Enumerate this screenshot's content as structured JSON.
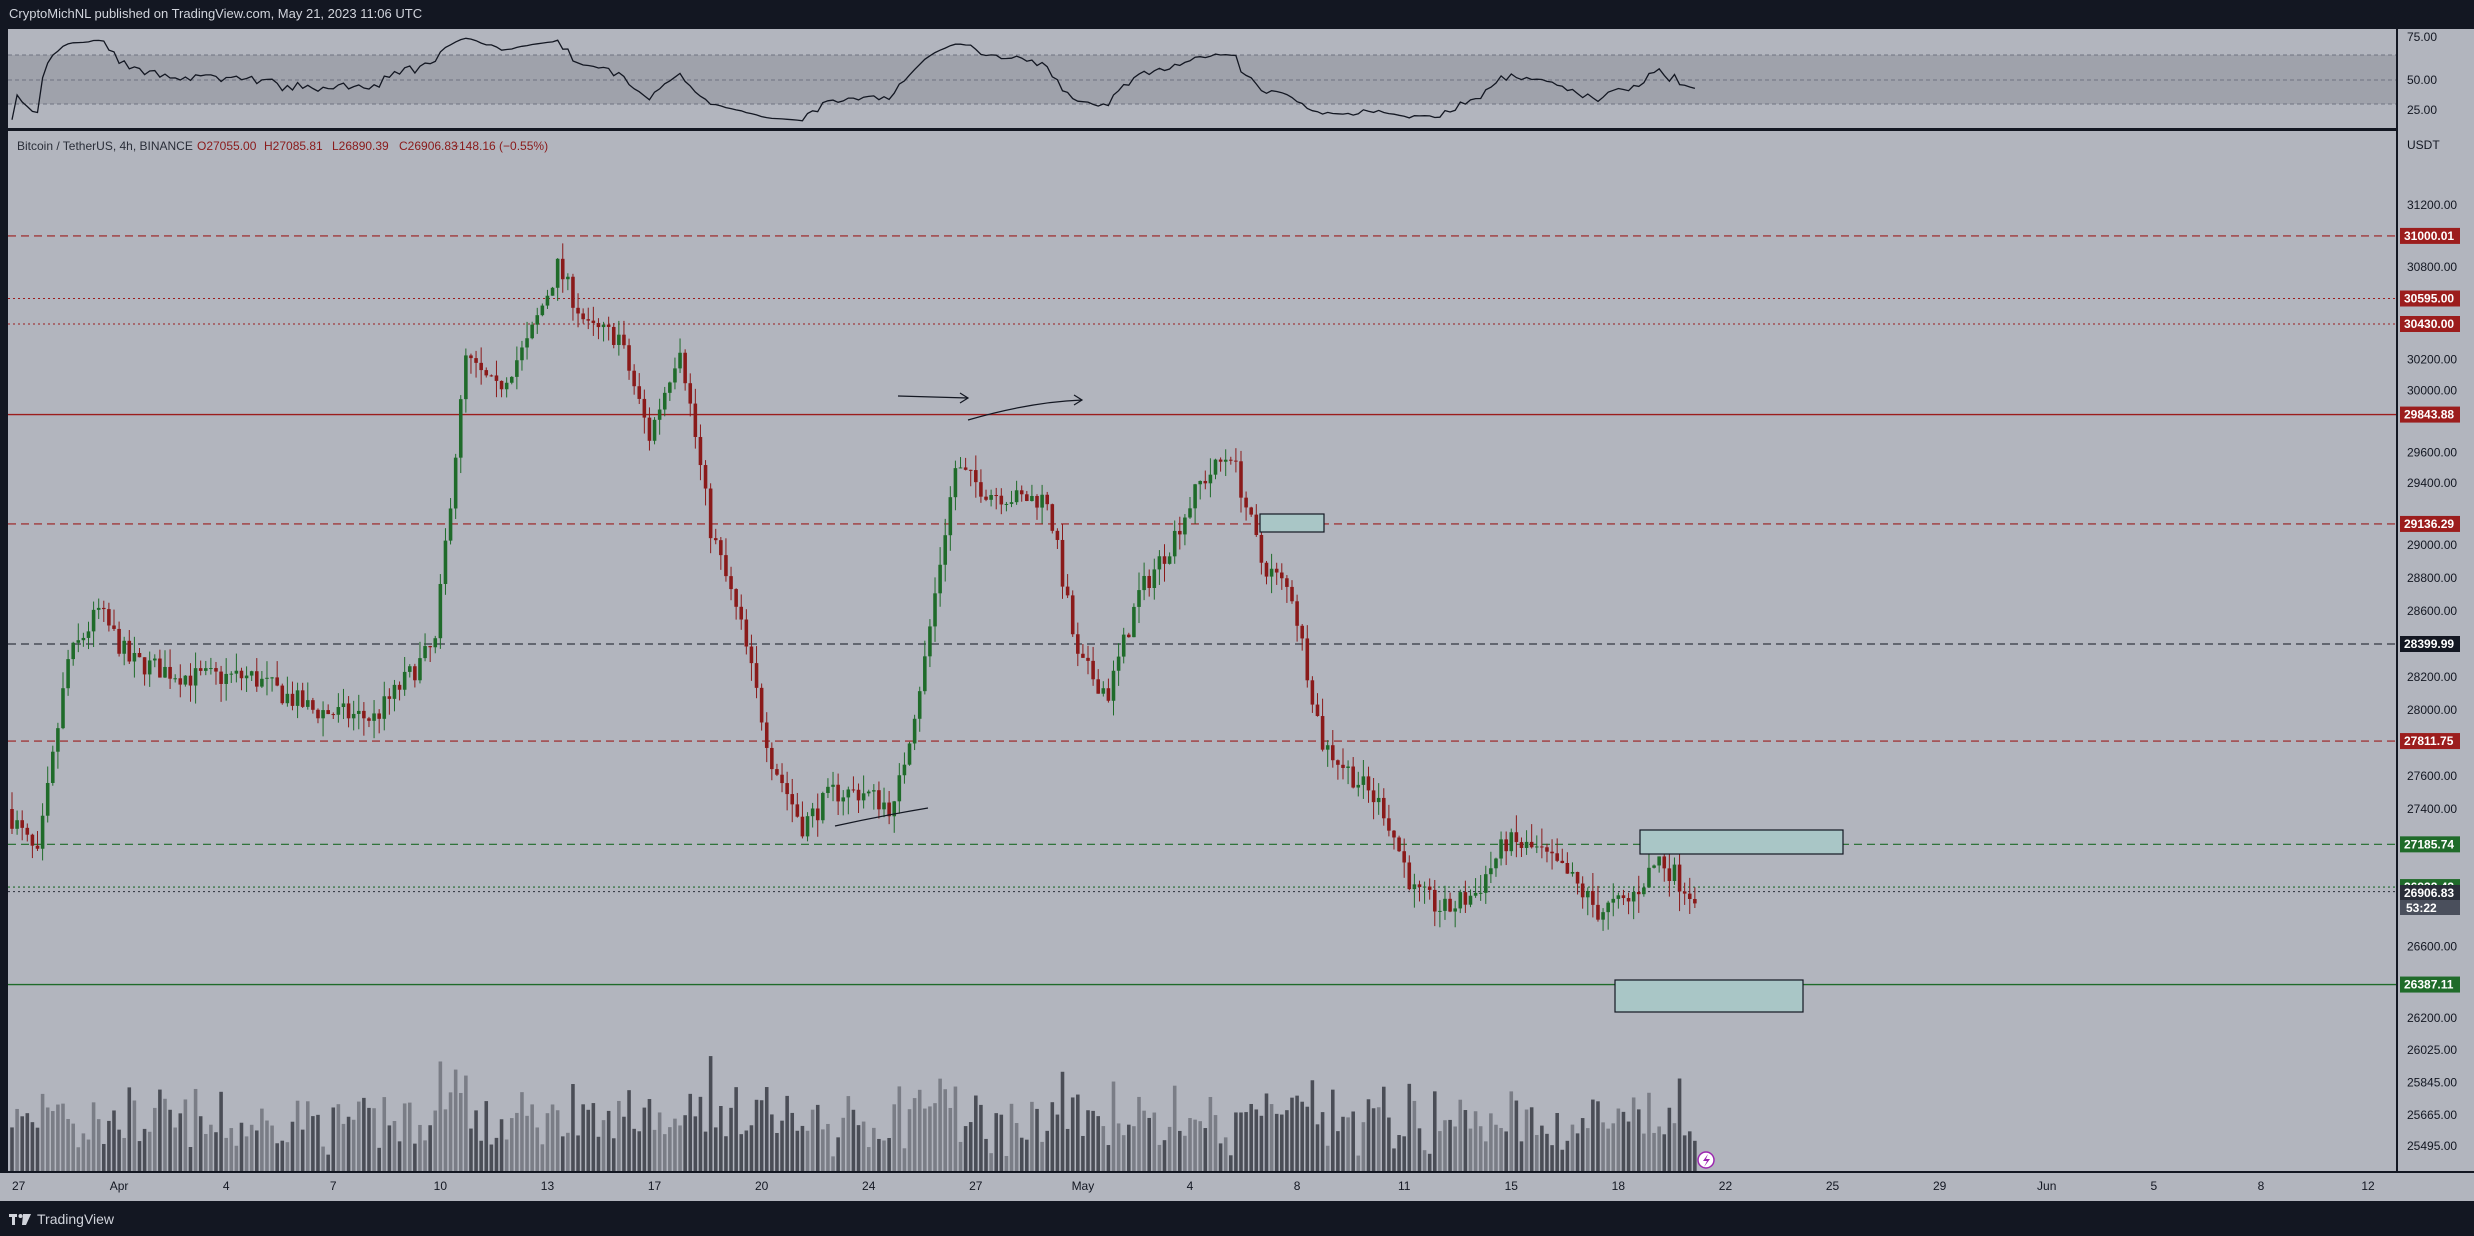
{
  "header": {
    "published": "CryptoMichNL published on TradingView.com, May 21, 2023 11:06 UTC"
  },
  "footer": {
    "brand": "TradingView"
  },
  "legend": {
    "symbol": "Bitcoin / TetherUS, 4h, BINANCE",
    "open": "O27055.00",
    "high": "H27085.81",
    "low": "L26890.39",
    "close": "C26906.83",
    "change": "−148.16 (−0.55%)"
  },
  "colors": {
    "background": "#b2b5be",
    "up": "#1f6b2a",
    "down": "#8a1a1a",
    "resistance": "#9c1d1d",
    "support": "#1f6b2a",
    "box_fill": "#a9c6c6"
  },
  "chart_data": {
    "type": "candlestick",
    "quote_currency": "USDT",
    "x_tick_labels": [
      "27",
      "Apr",
      "4",
      "7",
      "10",
      "13",
      "17",
      "20",
      "24",
      "27",
      "May",
      "4",
      "8",
      "11",
      "15",
      "18",
      "22",
      "25",
      "29",
      "Jun",
      "5",
      "8",
      "12"
    ],
    "x_date_range": [
      "2023-03-27",
      "2023-06-12"
    ],
    "y_tick_labels": [
      "31200.00",
      "30800.00",
      "30600.00",
      "30200.00",
      "30000.00",
      "29600.00",
      "29400.00",
      "29000.00",
      "28800.00",
      "28600.00",
      "28200.00",
      "28000.00",
      "27600.00",
      "27400.00",
      "26600.00",
      "26200.00",
      "26025.00",
      "25845.00",
      "25665.00",
      "25495.00"
    ],
    "price_levels": [
      {
        "label": "31000.01",
        "style": "dashed",
        "color": "resistance"
      },
      {
        "label": "30595.00",
        "style": "dotted",
        "color": "resistance"
      },
      {
        "label": "30430.00",
        "style": "dotted",
        "color": "resistance"
      },
      {
        "label": "29843.88",
        "style": "solid",
        "color": "resistance"
      },
      {
        "label": "29136.29",
        "style": "dashed",
        "color": "resistance"
      },
      {
        "label": "28399.99",
        "style": "dashed",
        "color": "black"
      },
      {
        "label": "27811.75",
        "style": "dashed",
        "color": "resistance"
      },
      {
        "label": "27185.74",
        "style": "dashed",
        "color": "support"
      },
      {
        "label": "26932.43",
        "style": "dotted",
        "color": "support"
      },
      {
        "label": "26387.11",
        "style": "solid",
        "color": "support"
      }
    ],
    "last_price": "26906.83",
    "countdown": "53:22",
    "price_path": [
      [
        "2023-03-27",
        27400
      ],
      [
        "2023-03-28",
        27100
      ],
      [
        "2023-03-29",
        28300
      ],
      [
        "2023-03-30",
        28600
      ],
      [
        "2023-03-31",
        28300
      ],
      [
        "2023-04-02",
        28200
      ],
      [
        "2023-04-04",
        28200
      ],
      [
        "2023-04-06",
        28000
      ],
      [
        "2023-04-08",
        27950
      ],
      [
        "2023-04-10",
        28400
      ],
      [
        "2023-04-11",
        30200
      ],
      [
        "2023-04-12",
        30000
      ],
      [
        "2023-04-13",
        30300
      ],
      [
        "2023-04-14",
        30800
      ],
      [
        "2023-04-15",
        30400
      ],
      [
        "2023-04-16",
        30350
      ],
      [
        "2023-04-17",
        29700
      ],
      [
        "2023-04-18",
        30300
      ],
      [
        "2023-04-19",
        29100
      ],
      [
        "2023-04-20",
        28500
      ],
      [
        "2023-04-21",
        27700
      ],
      [
        "2023-04-22",
        27300
      ],
      [
        "2023-04-23",
        27500
      ],
      [
        "2023-04-24",
        27500
      ],
      [
        "2023-04-25",
        27400
      ],
      [
        "2023-04-26",
        28300
      ],
      [
        "2023-04-27",
        29500
      ],
      [
        "2023-04-28",
        29350
      ],
      [
        "2023-04-29",
        29300
      ],
      [
        "2023-04-30",
        29300
      ],
      [
        "2023-05-01",
        28300
      ],
      [
        "2023-05-02",
        28100
      ],
      [
        "2023-05-03",
        28700
      ],
      [
        "2023-05-04",
        29000
      ],
      [
        "2023-05-05",
        29400
      ],
      [
        "2023-05-06",
        29600
      ],
      [
        "2023-05-07",
        28900
      ],
      [
        "2023-05-08",
        28700
      ],
      [
        "2023-05-09",
        27800
      ],
      [
        "2023-05-10",
        27600
      ],
      [
        "2023-05-11",
        27400
      ],
      [
        "2023-05-12",
        26900
      ],
      [
        "2023-05-13",
        26800
      ],
      [
        "2023-05-14",
        26900
      ],
      [
        "2023-05-15",
        27200
      ],
      [
        "2023-05-16",
        27150
      ],
      [
        "2023-05-17",
        27000
      ],
      [
        "2023-05-18",
        26800
      ],
      [
        "2023-05-19",
        26850
      ],
      [
        "2023-05-20",
        27100
      ],
      [
        "2023-05-21",
        26907
      ]
    ],
    "rsi": {
      "levels": [
        "75.00",
        "50.00",
        "25.00"
      ]
    }
  }
}
